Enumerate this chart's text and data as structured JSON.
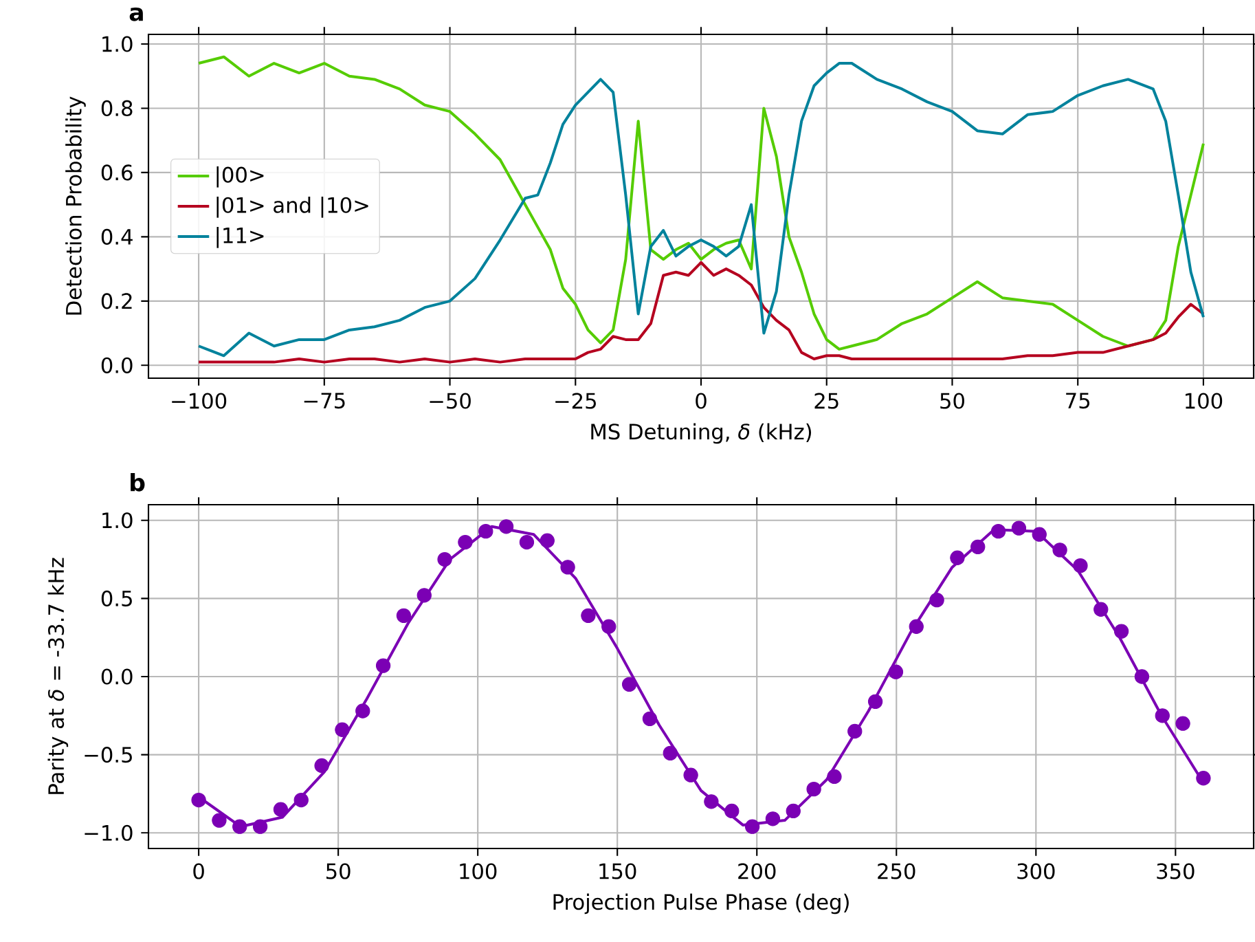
{
  "chart_data": [
    {
      "type": "line",
      "title": "a",
      "xlabel": "MS Detuning, *δ* (kHz)",
      "ylabel": "Detection Probability",
      "x": [
        -100,
        -95,
        -90,
        -85,
        -80,
        -75,
        -70,
        -65,
        -60,
        -55,
        -50,
        -45,
        -40,
        -35,
        -32.5,
        -30,
        -27.5,
        -25,
        -22.5,
        -20,
        -17.5,
        -15,
        -12.5,
        -10,
        -7.5,
        -5,
        -2.5,
        0,
        2.5,
        5,
        7.5,
        10,
        12.5,
        15,
        17.5,
        20,
        22.5,
        25,
        27.5,
        30,
        35,
        40,
        45,
        50,
        55,
        60,
        65,
        70,
        75,
        80,
        85,
        90,
        92.5,
        95,
        97.5,
        100
      ],
      "series": [
        {
          "name": "|00>",
          "color": "#55cc00",
          "values": [
            0.94,
            0.96,
            0.9,
            0.94,
            0.91,
            0.94,
            0.9,
            0.89,
            0.86,
            0.81,
            0.79,
            0.72,
            0.64,
            0.5,
            0.43,
            0.36,
            0.24,
            0.19,
            0.11,
            0.07,
            0.11,
            0.33,
            0.76,
            0.36,
            0.33,
            0.36,
            0.38,
            0.33,
            0.36,
            0.38,
            0.39,
            0.3,
            0.8,
            0.65,
            0.4,
            0.29,
            0.16,
            0.08,
            0.05,
            0.06,
            0.08,
            0.13,
            0.16,
            0.21,
            0.26,
            0.21,
            0.2,
            0.19,
            0.14,
            0.09,
            0.06,
            0.08,
            0.14,
            0.37,
            0.53,
            0.69
          ]
        },
        {
          "name": "|01> and |10>",
          "color": "#b5001f",
          "values": [
            0.01,
            0.01,
            0.01,
            0.01,
            0.02,
            0.01,
            0.02,
            0.02,
            0.01,
            0.02,
            0.01,
            0.02,
            0.01,
            0.02,
            0.02,
            0.02,
            0.02,
            0.02,
            0.04,
            0.05,
            0.09,
            0.08,
            0.08,
            0.13,
            0.28,
            0.29,
            0.28,
            0.32,
            0.28,
            0.3,
            0.28,
            0.25,
            0.18,
            0.14,
            0.11,
            0.04,
            0.02,
            0.03,
            0.03,
            0.02,
            0.02,
            0.02,
            0.02,
            0.02,
            0.02,
            0.02,
            0.03,
            0.03,
            0.04,
            0.04,
            0.06,
            0.08,
            0.1,
            0.15,
            0.19,
            0.16
          ]
        },
        {
          "name": "|11>",
          "color": "#00829c",
          "values": [
            0.06,
            0.03,
            0.1,
            0.06,
            0.08,
            0.08,
            0.11,
            0.12,
            0.14,
            0.18,
            0.2,
            0.27,
            0.39,
            0.52,
            0.53,
            0.63,
            0.75,
            0.81,
            0.85,
            0.89,
            0.85,
            0.53,
            0.16,
            0.37,
            0.42,
            0.34,
            0.37,
            0.39,
            0.37,
            0.34,
            0.37,
            0.5,
            0.1,
            0.23,
            0.53,
            0.76,
            0.87,
            0.91,
            0.94,
            0.94,
            0.89,
            0.86,
            0.82,
            0.79,
            0.73,
            0.72,
            0.78,
            0.79,
            0.84,
            0.87,
            0.89,
            0.86,
            0.76,
            0.53,
            0.29,
            0.15
          ]
        }
      ],
      "xlim": [
        -110,
        110
      ],
      "ylim": [
        -0.04,
        1.03
      ],
      "xticks": [
        {
          "value": -100,
          "label": "−100"
        },
        {
          "value": -75,
          "label": "−75"
        },
        {
          "value": -50,
          "label": "−50"
        },
        {
          "value": -25,
          "label": "−25"
        },
        0,
        25,
        50,
        75,
        100
      ],
      "yticks": [
        {
          "value": 0,
          "label": "0.0"
        },
        {
          "value": 0.2,
          "label": "0.2"
        },
        {
          "value": 0.4,
          "label": "0.4"
        },
        {
          "value": 0.6,
          "label": "0.6"
        },
        {
          "value": 0.8,
          "label": "0.8"
        },
        {
          "value": 1,
          "label": "1.0"
        }
      ],
      "grid": true,
      "legend": "left"
    },
    {
      "type": "scatter",
      "title": "b",
      "xlabel": "Projection Pulse Phase (deg)",
      "ylabel": "Parity at *δ* = -33.7 kHz",
      "x": [
        0,
        7.35,
        14.69,
        22.04,
        29.39,
        36.73,
        44.08,
        51.43,
        58.78,
        66.12,
        73.47,
        80.82,
        88.16,
        95.51,
        102.86,
        110.2,
        117.55,
        124.9,
        132.24,
        139.59,
        146.94,
        154.29,
        161.63,
        168.98,
        176.33,
        183.67,
        191.02,
        198.37,
        205.71,
        213.06,
        220.41,
        227.76,
        235.1,
        242.45,
        249.8,
        257.14,
        264.49,
        271.84,
        279.18,
        286.53,
        293.88,
        301.22,
        308.57,
        315.92,
        323.27,
        330.61,
        337.96,
        345.31,
        352.65,
        360
      ],
      "series": [
        {
          "type": "scatter",
          "marker": "circle",
          "color": "#7b00b4",
          "values": [
            -0.79,
            -0.92,
            -0.96,
            -0.96,
            -0.85,
            -0.79,
            -0.57,
            -0.34,
            -0.22,
            0.07,
            0.39,
            0.52,
            0.75,
            0.86,
            0.93,
            0.96,
            0.86,
            0.87,
            0.7,
            0.39,
            0.32,
            -0.05,
            -0.27,
            -0.49,
            -0.63,
            -0.8,
            -0.86,
            -0.96,
            -0.91,
            -0.86,
            -0.72,
            -0.64,
            -0.35,
            -0.16,
            0.03,
            0.32,
            0.49,
            0.76,
            0.83,
            0.93,
            0.95,
            0.91,
            0.81,
            0.71,
            0.43,
            0.29,
            0.0,
            -0.25,
            -0.3,
            -0.65
          ]
        },
        {
          "type": "line",
          "color": "#7b00b4",
          "x": [
            0,
            15,
            30,
            45,
            60,
            75,
            90,
            105,
            120,
            135,
            150,
            165,
            180,
            195,
            210,
            225,
            240,
            255,
            270,
            285,
            300,
            315,
            330,
            345,
            360
          ],
          "values": [
            -0.77,
            -0.96,
            -0.9,
            -0.61,
            -0.15,
            0.34,
            0.75,
            0.96,
            0.91,
            0.63,
            0.18,
            -0.31,
            -0.73,
            -0.95,
            -0.92,
            -0.66,
            -0.22,
            0.28,
            0.7,
            0.94,
            0.93,
            0.68,
            0.25,
            -0.25,
            -0.68
          ]
        }
      ],
      "xlim": [
        -18,
        378
      ],
      "ylim": [
        -1.1,
        1.1
      ],
      "xticks": [
        0,
        50,
        100,
        150,
        200,
        250,
        300,
        350
      ],
      "yticks": [
        {
          "value": -1,
          "label": "−1.0"
        },
        {
          "value": -0.5,
          "label": "−0.5"
        },
        {
          "value": 0,
          "label": "0.0"
        },
        {
          "value": 0.5,
          "label": "0.5"
        },
        {
          "value": 1,
          "label": "1.0"
        }
      ],
      "grid": true
    }
  ]
}
